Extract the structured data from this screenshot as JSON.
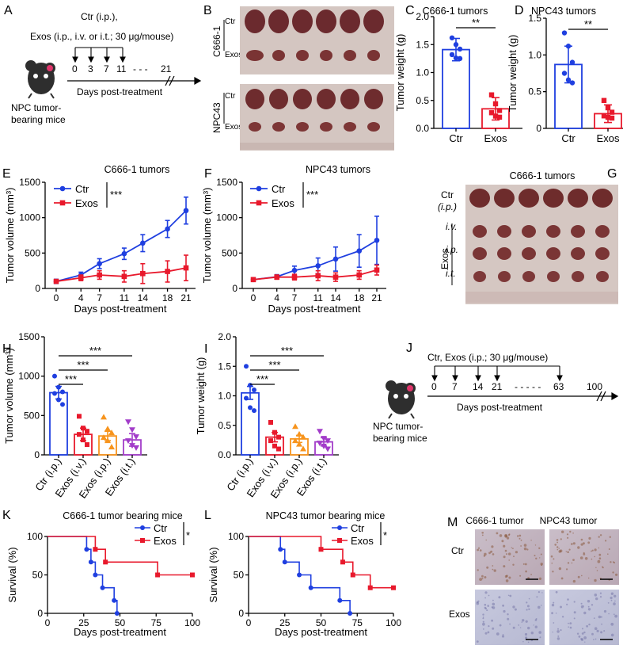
{
  "panels": {
    "A": "A",
    "B": "B",
    "C": "C",
    "D": "D",
    "E": "E",
    "F": "F",
    "G": "G",
    "H": "H",
    "I": "I",
    "J": "J",
    "K": "K",
    "L": "L",
    "M": "M"
  },
  "colors": {
    "ctr": "#1f3fe0",
    "exos": "#e8192c",
    "exos_ip": "#f7941d",
    "exos_it": "#a23cc9"
  },
  "schemaA": {
    "line1": "Ctr (i.p.),",
    "line2": "Exos (i.p., i.v. or i.t.; 30 μg/mouse)",
    "days": [
      "0",
      "3",
      "7",
      "11",
      "21"
    ],
    "dashes": "- - -",
    "xlabel": "Days post-treatment",
    "mouse1": "NPC tumor-",
    "mouse2": "bearing mice"
  },
  "photoB": {
    "row1": "C666-1",
    "row2": "NPC43",
    "ctr": "Ctr",
    "exos": "Exos"
  },
  "schemaJ": {
    "line1": "Ctr, Exos (i.p.; 30 μg/mouse)",
    "days": [
      "0",
      "7",
      "14",
      "21",
      "63",
      "100"
    ],
    "dashes": "- - - - -",
    "xlabel": "Days post-treatment",
    "mouse1": "NPC tumor-",
    "mouse2": "bearing mice"
  },
  "photoG": {
    "title": "C666-1 tumors",
    "ctr": "Ctr",
    "ctr_route": "(i.p.)",
    "exos": "Exos",
    "iv": "i.v.",
    "ip": "i.p.",
    "it": "i.t."
  },
  "photoM": {
    "col1": "C666-1 tumor",
    "col2": "NPC43 tumor",
    "row1": "Ctr",
    "row2": "Exos"
  },
  "chart_data": [
    {
      "id": "C",
      "type": "bar",
      "title": "C666-1 tumors",
      "categories": [
        "Ctr",
        "Exos"
      ],
      "means": [
        1.41,
        0.35
      ],
      "errors": [
        0.2,
        0.2
      ],
      "points": [
        [
          1.62,
          1.5,
          1.42,
          1.32,
          1.26,
          1.25
        ],
        [
          0.6,
          0.44,
          0.32,
          0.28,
          0.22,
          0.2
        ]
      ],
      "ylabel": "Tumor weight (g)",
      "ylim": [
        0,
        2.0
      ],
      "yticks": [
        "0.0",
        "0.5",
        "1.0",
        "1.5",
        "2.0"
      ],
      "significance": "**"
    },
    {
      "id": "D",
      "type": "bar",
      "title": "NPC43 tumors",
      "categories": [
        "Ctr",
        "Exos"
      ],
      "means": [
        0.87,
        0.2
      ],
      "errors": [
        0.25,
        0.12
      ],
      "points": [
        [
          1.3,
          1.12,
          0.9,
          0.75,
          0.66,
          0.62
        ],
        [
          0.38,
          0.28,
          0.22,
          0.17,
          0.15,
          0.14
        ]
      ],
      "ylabel": "Tumor weight (g)",
      "ylim": [
        0,
        1.5
      ],
      "yticks": [
        "0",
        "0.5",
        "1.0",
        "1.5"
      ],
      "significance": "**"
    },
    {
      "id": "E",
      "type": "line",
      "title": "C666-1 tumors",
      "x": [
        0,
        4,
        7,
        11,
        14,
        18,
        21
      ],
      "series": [
        {
          "name": "Ctr",
          "values": [
            100,
            190,
            350,
            490,
            640,
            840,
            1100
          ],
          "errors": [
            30,
            40,
            70,
            80,
            120,
            120,
            190
          ]
        },
        {
          "name": "Exos",
          "values": [
            100,
            150,
            190,
            170,
            210,
            240,
            290
          ],
          "errors": [
            20,
            40,
            60,
            80,
            140,
            150,
            180
          ]
        }
      ],
      "xlabel": "Days post-treatment",
      "ylabel": "Tumor volume (mm³)",
      "ylim": [
        0,
        1500
      ],
      "yticks": [
        "0",
        "500",
        "1000",
        "1500"
      ],
      "significance": "***"
    },
    {
      "id": "F",
      "type": "line",
      "title": "NPC43 tumors",
      "x": [
        0,
        4,
        7,
        11,
        14,
        18,
        21
      ],
      "series": [
        {
          "name": "Ctr",
          "values": [
            125,
            165,
            255,
            320,
            415,
            530,
            680
          ],
          "errors": [
            15,
            30,
            60,
            110,
            170,
            230,
            340
          ]
        },
        {
          "name": "Exos",
          "values": [
            125,
            160,
            160,
            180,
            160,
            190,
            260
          ],
          "errors": [
            10,
            30,
            40,
            70,
            60,
            60,
            70
          ]
        }
      ],
      "xlabel": "Days post-treatment",
      "ylabel": "Tumor volume (mm³)",
      "ylim": [
        0,
        1500
      ],
      "yticks": [
        "0",
        "500",
        "1000",
        "1500"
      ],
      "significance": "***"
    },
    {
      "id": "H",
      "type": "bar",
      "categories": [
        "Ctr (i.p.)",
        "Exos (i.v.)",
        "Exos (i.p.)",
        "Exos (i.t.)"
      ],
      "means": [
        790,
        260,
        240,
        190
      ],
      "errors": [
        80,
        80,
        60,
        80
      ],
      "points": [
        [
          1000,
          860,
          800,
          780,
          700,
          640
        ],
        [
          490,
          340,
          300,
          260,
          190,
          130
        ],
        [
          480,
          330,
          280,
          220,
          180,
          100
        ],
        [
          420,
          320,
          230,
          180,
          120,
          90
        ]
      ],
      "markers": [
        "circle",
        "square",
        "triangle",
        "triangle-down"
      ],
      "ylabel": "Tumor volume (mm³)",
      "ylim": [
        0,
        1500
      ],
      "yticks": [
        "0",
        "500",
        "1000",
        "1500"
      ],
      "significance": [
        "***",
        "***",
        "***"
      ]
    },
    {
      "id": "I",
      "type": "bar",
      "categories": [
        "Ctr (i.p.)",
        "Exos (i.v.)",
        "Exos (i.p.)",
        "Exos (i.t.)"
      ],
      "means": [
        1.05,
        0.3,
        0.27,
        0.22
      ],
      "errors": [
        0.11,
        0.08,
        0.06,
        0.07
      ],
      "points": [
        [
          1.5,
          1.18,
          1.1,
          0.96,
          0.8,
          0.75
        ],
        [
          0.55,
          0.38,
          0.3,
          0.24,
          0.15,
          0.1
        ],
        [
          0.48,
          0.35,
          0.3,
          0.24,
          0.18,
          0.1
        ],
        [
          0.4,
          0.28,
          0.24,
          0.2,
          0.15,
          0.1
        ]
      ],
      "markers": [
        "circle",
        "square",
        "triangle",
        "triangle-down"
      ],
      "ylabel": "Tumor weight (g)",
      "ylim": [
        0,
        2.0
      ],
      "yticks": [
        "0.0",
        "0.5",
        "1.0",
        "1.5",
        "2.0"
      ],
      "significance": [
        "***",
        "***",
        "***"
      ]
    },
    {
      "id": "K",
      "type": "line",
      "title": "C666-1 tumor bearing mice",
      "series": [
        {
          "name": "Ctr",
          "steps": [
            [
              0,
              100
            ],
            [
              27,
              100
            ],
            [
              27,
              83.3
            ],
            [
              30,
              83.3
            ],
            [
              30,
              66.7
            ],
            [
              33,
              66.7
            ],
            [
              33,
              50
            ],
            [
              38,
              50
            ],
            [
              38,
              33.3
            ],
            [
              46,
              33.3
            ],
            [
              46,
              16.7
            ],
            [
              48,
              16.7
            ],
            [
              48,
              0
            ]
          ],
          "points": [
            [
              27,
              83.3
            ],
            [
              30,
              66.7
            ],
            [
              33,
              50
            ],
            [
              38,
              33.3
            ],
            [
              46,
              16.7
            ],
            [
              48,
              0
            ]
          ]
        },
        {
          "name": "Exos",
          "steps": [
            [
              0,
              100
            ],
            [
              33,
              100
            ],
            [
              33,
              83.3
            ],
            [
              40,
              83.3
            ],
            [
              40,
              66.7
            ],
            [
              76,
              66.7
            ],
            [
              76,
              50
            ],
            [
              100,
              50
            ]
          ],
          "points": [
            [
              33,
              83.3
            ],
            [
              40,
              66.7
            ],
            [
              76,
              50
            ],
            [
              100,
              50
            ]
          ]
        }
      ],
      "xlabel": "Days post-treatment",
      "ylabel": "Survival (%)",
      "xlim": [
        0,
        100
      ],
      "ylim": [
        0,
        100
      ],
      "xticks": [
        "0",
        "25",
        "50",
        "75",
        "100"
      ],
      "yticks": [
        "0",
        "50",
        "100"
      ],
      "significance": "*"
    },
    {
      "id": "L",
      "type": "line",
      "title": "NPC43 tumor bearing mice",
      "series": [
        {
          "name": "Ctr",
          "steps": [
            [
              0,
              100
            ],
            [
              22,
              100
            ],
            [
              22,
              83.3
            ],
            [
              25,
              83.3
            ],
            [
              25,
              66.7
            ],
            [
              35,
              66.7
            ],
            [
              35,
              50
            ],
            [
              43,
              50
            ],
            [
              43,
              33.3
            ],
            [
              63,
              33.3
            ],
            [
              63,
              16.7
            ],
            [
              70,
              16.7
            ],
            [
              70,
              0
            ]
          ],
          "points": [
            [
              22,
              83.3
            ],
            [
              25,
              66.7
            ],
            [
              35,
              50
            ],
            [
              43,
              33.3
            ],
            [
              63,
              16.7
            ],
            [
              70,
              0
            ]
          ]
        },
        {
          "name": "Exos",
          "steps": [
            [
              0,
              100
            ],
            [
              50,
              100
            ],
            [
              50,
              83.3
            ],
            [
              65,
              83.3
            ],
            [
              65,
              66.7
            ],
            [
              72,
              66.7
            ],
            [
              72,
              50
            ],
            [
              84,
              50
            ],
            [
              84,
              33.3
            ],
            [
              100,
              33.3
            ]
          ],
          "points": [
            [
              50,
              83.3
            ],
            [
              65,
              66.7
            ],
            [
              72,
              50
            ],
            [
              84,
              33.3
            ],
            [
              100,
              33.3
            ]
          ]
        }
      ],
      "xlabel": "Days post-treatment",
      "ylabel": "Survival (%)",
      "xlim": [
        0,
        100
      ],
      "ylim": [
        0,
        100
      ],
      "xticks": [
        "0",
        "25",
        "50",
        "75",
        "100"
      ],
      "yticks": [
        "0",
        "50",
        "100"
      ],
      "significance": "*"
    }
  ]
}
